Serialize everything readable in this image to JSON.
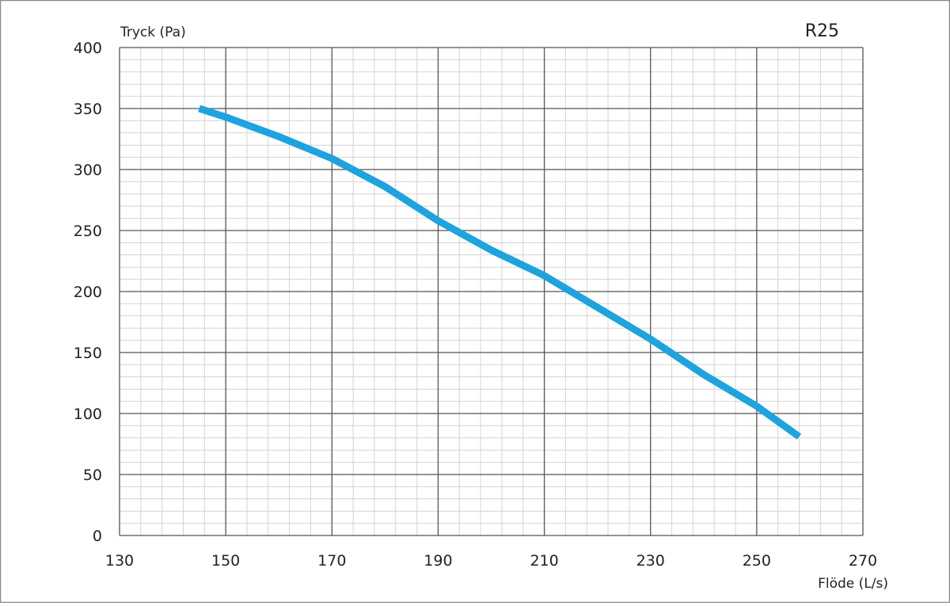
{
  "chart_data": {
    "type": "line",
    "y_label": "Tryck (Pa)",
    "x_label": "Flöde (L/s)",
    "x": [
      145,
      150,
      160,
      170,
      180,
      190,
      200,
      210,
      220,
      230,
      240,
      250,
      258
    ],
    "series": [
      {
        "name": "R25",
        "color": "#1ea3de",
        "values": [
          350,
          343,
          327,
          309,
          286,
          258,
          234,
          213,
          187,
          161,
          132,
          106,
          81
        ]
      }
    ],
    "xlim": [
      130,
      270
    ],
    "xticks": [
      130,
      150,
      170,
      190,
      210,
      230,
      250,
      270
    ],
    "ylim": [
      0,
      400
    ],
    "yticks": [
      0,
      50,
      100,
      150,
      200,
      250,
      300,
      350,
      400
    ],
    "grid": true,
    "minor_divisions": 5
  }
}
